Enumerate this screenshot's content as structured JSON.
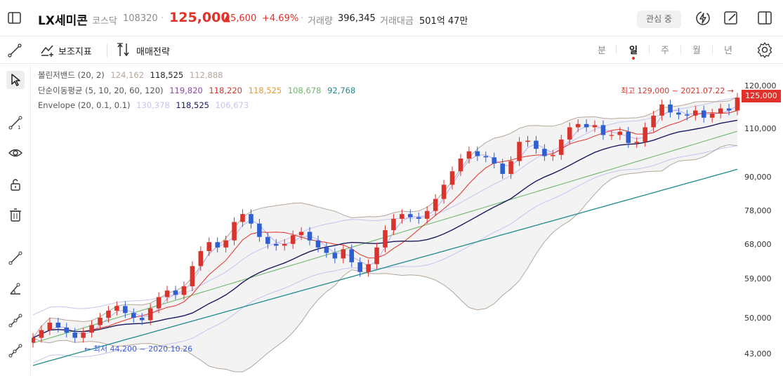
{
  "header": {
    "name": "LX세미콘",
    "market": "코스닥",
    "code": "108320",
    "price": "125,000",
    "change": "▲5,600",
    "change_pct": "+4.69%",
    "volume_label": "거래량",
    "volume": "396,345",
    "amount_label": "거래대금",
    "amount": "501억 47만",
    "watch_label": "관심 중",
    "sep": "·"
  },
  "toolbar": {
    "indicator_label": "보조지표",
    "strategy_label": "매매전략",
    "periods": [
      "분",
      "일",
      "주",
      "월",
      "년"
    ],
    "active_period": "일"
  },
  "legend": {
    "bb": {
      "label": "볼린저밴드 (20, 2)",
      "v1": "124,162",
      "v2": "118,525",
      "v3": "112,888"
    },
    "ma": {
      "label": "단순이동평균 (5, 10, 20, 60, 120)",
      "v1": "119,820",
      "v2": "118,220",
      "v3": "118,525",
      "v4": "108,678",
      "v5": "92,768"
    },
    "env": {
      "label": "Envelope (20, 0.1, 0.1)",
      "v1": "130,378",
      "v2": "118,525",
      "v3": "106,673"
    }
  },
  "chart_data": {
    "type": "candlestick",
    "interval": "일",
    "y_axis_ticks": [
      "120,000",
      "110,000",
      "90,000",
      "78,000",
      "68,000",
      "59,000",
      "50,000",
      "43,000"
    ],
    "current_price": "125,000",
    "high_annotation": "최고 129,000 ~ 2021.07.22 →",
    "low_annotation": "← 최저 44,200 ~ 2020.10.26",
    "approx_close_series": [
      46000,
      47500,
      49000,
      48000,
      47000,
      46000,
      47000,
      48500,
      50000,
      51500,
      52500,
      51000,
      50000,
      49500,
      52000,
      54500,
      56000,
      55000,
      57000,
      62000,
      66000,
      68500,
      67000,
      69000,
      74500,
      77000,
      74000,
      70000,
      68000,
      67500,
      68000,
      70500,
      71500,
      69000,
      67000,
      65500,
      64000,
      66500,
      63000,
      60500,
      62500,
      67000,
      72000,
      75500,
      77000,
      76000,
      75500,
      78000,
      82000,
      87000,
      92000,
      97000,
      100000,
      98000,
      97500,
      95000,
      91000,
      96000,
      104000,
      104500,
      101000,
      98000,
      98500,
      105000,
      110500,
      112000,
      110500,
      111500,
      107000,
      107000,
      108500,
      103500,
      104000,
      110500,
      116000,
      121500,
      117500,
      116500,
      116000,
      118500,
      115000,
      117000,
      119500,
      118500,
      125000
    ],
    "colors": {
      "up": "#d9342b",
      "down": "#2d5fd1",
      "ma5": "#e0322a",
      "ma20": "#1a1a5e",
      "ma60": "#6fb86b",
      "ma120": "#1f8a8a",
      "envelope": "#c7c3ef",
      "bollinger": "#b5a79a"
    }
  },
  "icons": {
    "sidebar_toggle": "sidebar-toggle-icon",
    "lightning": "lightning-icon",
    "memo": "memo-edit-icon",
    "layout": "layout-icon",
    "settings": "gear-icon"
  }
}
